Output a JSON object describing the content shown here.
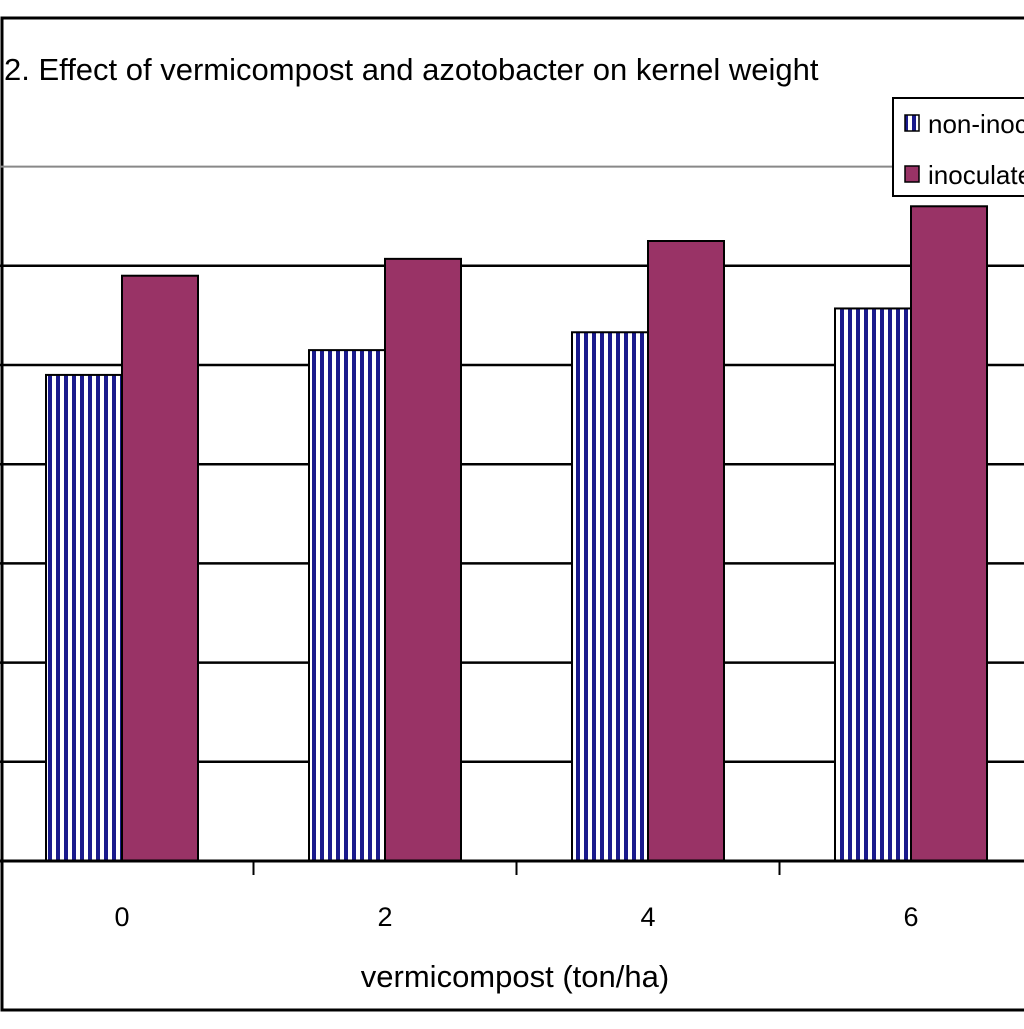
{
  "chart_data": {
    "type": "bar",
    "title": "2. Effect of vermicompost and azotobacter on kernel weight",
    "xlabel": "vermicompost (ton/ha)",
    "ylabel": "",
    "categories": [
      "0",
      "2",
      "4",
      "6"
    ],
    "series": [
      {
        "name": "non-inoculated",
        "values": [
          4.9,
          5.15,
          5.33,
          5.57
        ],
        "pattern": "vertical-stripes",
        "color": "#1a1a8c"
      },
      {
        "name": "inoculated",
        "values": [
          5.9,
          6.07,
          6.25,
          6.6
        ],
        "pattern": "solid",
        "color": "#993366"
      }
    ],
    "ylim": [
      0,
      7.0
    ],
    "grid": true,
    "legend": "top-right"
  }
}
